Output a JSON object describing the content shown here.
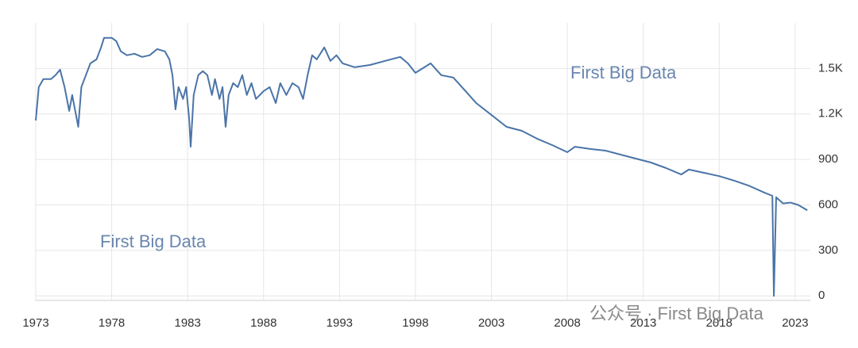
{
  "chart_data": {
    "type": "line",
    "annotations": [
      "First Big Data",
      "First Big Data",
      "公众号 · First Big Data"
    ],
    "x": [
      1973.0,
      1973.2,
      1973.5,
      1974.0,
      1974.3,
      1974.6,
      1974.9,
      1975.2,
      1975.4,
      1975.6,
      1975.8,
      1976.0,
      1976.3,
      1976.6,
      1977.0,
      1977.3,
      1977.5,
      1978.0,
      1978.3,
      1978.6,
      1979.0,
      1979.5,
      1980.0,
      1980.5,
      1981.0,
      1981.5,
      1981.8,
      1982.0,
      1982.2,
      1982.4,
      1982.7,
      1982.9,
      1983.1,
      1983.2,
      1983.4,
      1983.7,
      1984.0,
      1984.3,
      1984.6,
      1984.8,
      1985.1,
      1985.3,
      1985.5,
      1985.7,
      1986.0,
      1986.3,
      1986.6,
      1986.9,
      1987.2,
      1987.5,
      1988.0,
      1988.4,
      1988.8,
      1989.1,
      1989.5,
      1989.9,
      1990.3,
      1990.6,
      1990.9,
      1991.2,
      1991.5,
      1992.0,
      1992.4,
      1992.8,
      1993.2,
      1994.0,
      1995.0,
      1996.0,
      1997.0,
      1997.5,
      1998.0,
      1999.0,
      1999.7,
      2000.5,
      2001.3,
      2002.0,
      2003.0,
      2004.0,
      2005.0,
      2006.0,
      2007.0,
      2008.0,
      2008.5,
      2009.5,
      2010.5,
      2011.5,
      2012.5,
      2013.5,
      2014.5,
      2015.5,
      2016.0,
      2017.0,
      2018.0,
      2019.0,
      2020.0,
      2021.0,
      2021.5,
      2021.6,
      2021.75,
      2022.2,
      2022.7,
      2023.2,
      2023.8
    ],
    "series": [
      {
        "color": "#4a74a8",
        "values": [
          1157,
          1377,
          1430,
          1430,
          1456,
          1492,
          1377,
          1220,
          1325,
          1220,
          1115,
          1377,
          1456,
          1534,
          1560,
          1639,
          1702,
          1702,
          1681,
          1613,
          1587,
          1597,
          1576,
          1587,
          1628,
          1613,
          1560,
          1456,
          1230,
          1377,
          1299,
          1377,
          1168,
          984,
          1325,
          1456,
          1482,
          1456,
          1325,
          1430,
          1299,
          1377,
          1115,
          1325,
          1403,
          1377,
          1456,
          1325,
          1403,
          1299,
          1351,
          1377,
          1272,
          1403,
          1325,
          1403,
          1377,
          1299,
          1456,
          1587,
          1560,
          1639,
          1550,
          1587,
          1534,
          1508,
          1523,
          1550,
          1576,
          1534,
          1471,
          1534,
          1456,
          1440,
          1351,
          1272,
          1194,
          1115,
          1089,
          1037,
          995,
          948,
          984,
          969,
          958,
          932,
          906,
          880,
          843,
          801,
          833,
          812,
          790,
          760,
          725,
          680,
          660,
          0,
          650,
          610,
          615,
          600,
          565
        ]
      }
    ],
    "xlim": [
      1973,
      2024
    ],
    "ylim": [
      -30,
      1800
    ],
    "xticks": [
      1973,
      1978,
      1983,
      1988,
      1993,
      1998,
      2003,
      2008,
      2013,
      2018,
      2023
    ],
    "yticks": [
      0,
      300,
      600,
      900,
      {
        "value": 1200,
        "label": "1.2K"
      },
      {
        "value": 1500,
        "label": "1.5K"
      }
    ],
    "grid": true
  }
}
